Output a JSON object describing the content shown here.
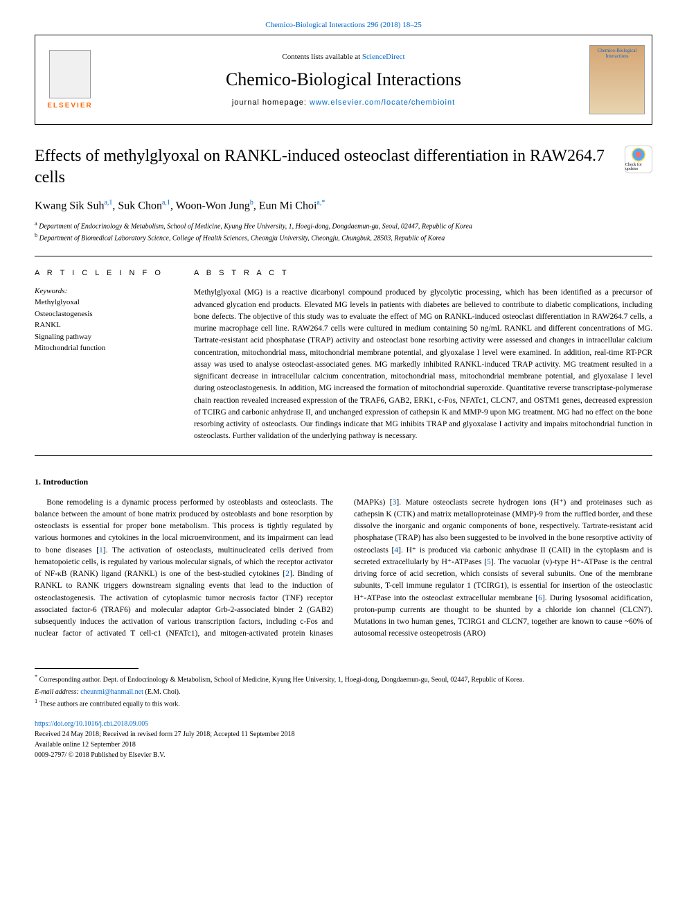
{
  "journal_ref": "Chemico-Biological Interactions 296 (2018) 18–25",
  "header": {
    "contents_prefix": "Contents lists available at ",
    "contents_link": "ScienceDirect",
    "journal_name": "Chemico-Biological Interactions",
    "homepage_prefix": "journal homepage: ",
    "homepage_link": "www.elsevier.com/locate/chembioint",
    "publisher": "ELSEVIER",
    "cover_text": "Chemico-Biological Interactions"
  },
  "updates_label": "Check for updates",
  "title": "Effects of methylglyoxal on RANKL-induced osteoclast differentiation in RAW264.7 cells",
  "authors_html": "Kwang Sik Suh<sup>a,1</sup>, Suk Chon<sup>a,1</sup>, Woon-Won Jung<sup>b</sup>, Eun Mi Choi<sup>a,*</sup>",
  "affiliations": {
    "a": "Department of Endocrinology & Metabolism, School of Medicine, Kyung Hee University, 1, Hoegi-dong, Dongdaemun-gu, Seoul, 02447, Republic of Korea",
    "b": "Department of Biomedical Laboratory Science, College of Health Sciences, Cheongju University, Cheongju, Chungbuk, 28503, Republic of Korea"
  },
  "article_info_header": "A R T I C L E  I N F O",
  "abstract_header": "A B S T R A C T",
  "keywords_label": "Keywords:",
  "keywords": [
    "Methylglyoxal",
    "Osteoclastogenesis",
    "RANKL",
    "Signaling pathway",
    "Mitochondrial function"
  ],
  "abstract": "Methylglyoxal (MG) is a reactive dicarbonyl compound produced by glycolytic processing, which has been identified as a precursor of advanced glycation end products. Elevated MG levels in patients with diabetes are believed to contribute to diabetic complications, including bone defects. The objective of this study was to evaluate the effect of MG on RANKL-induced osteoclast differentiation in RAW264.7 cells, a murine macrophage cell line. RAW264.7 cells were cultured in medium containing 50 ng/mL RANKL and different concentrations of MG. Tartrate-resistant acid phosphatase (TRAP) activity and osteoclast bone resorbing activity were assessed and changes in intracellular calcium concentration, mitochondrial mass, mitochondrial membrane potential, and glyoxalase I level were examined. In addition, real-time RT-PCR assay was used to analyse osteoclast-associated genes. MG markedly inhibited RANKL-induced TRAP activity. MG treatment resulted in a significant decrease in intracellular calcium concentration, mitochondrial mass, mitochondrial membrane potential, and glyoxalase I level during osteoclastogenesis. In addition, MG increased the formation of mitochondrial superoxide. Quantitative reverse transcriptase-polymerase chain reaction revealed increased expression of the TRAF6, GAB2, ERK1, c-Fos, NFATc1, CLCN7, and OSTM1 genes, decreased expression of TCIRG and carbonic anhydrase II, and unchanged expression of cathepsin K and MMP-9 upon MG treatment. MG had no effect on the bone resorbing activity of osteoclasts. Our findings indicate that MG inhibits TRAP and glyoxalase I activity and impairs mitochondrial function in osteoclasts. Further validation of the underlying pathway is necessary.",
  "intro_header": "1. Introduction",
  "intro_body": "Bone remodeling is a dynamic process performed by osteoblasts and osteoclasts. The balance between the amount of bone matrix produced by osteoblasts and bone resorption by osteoclasts is essential for proper bone metabolism. This process is tightly regulated by various hormones and cytokines in the local microenvironment, and its impairment can lead to bone diseases [1]. The activation of osteoclasts, multinucleated cells derived from hematopoietic cells, is regulated by various molecular signals, of which the receptor activator of NF-κB (RANK) ligand (RANKL) is one of the best-studied cytokines [2]. Binding of RANKL to RANK triggers downstream signaling events that lead to the induction of osteoclastogenesis. The activation of cytoplasmic tumor necrosis factor (TNF) receptor associated factor-6 (TRAF6) and molecular adaptor Grb-2-associated binder 2 (GAB2) subsequently induces the activation of various transcription factors, including c-Fos and nuclear factor of activated T cell-c1 (NFATc1), and mitogen-activated protein kinases (MAPKs) [3]. Mature osteoclasts secrete hydrogen ions (H⁺) and proteinases such as cathepsin K (CTK) and matrix metalloproteinase (MMP)-9 from the ruffled border, and these dissolve the inorganic and organic components of bone, respectively. Tartrate-resistant acid phosphatase (TRAP) has also been suggested to be involved in the bone resorptive activity of osteoclasts [4]. H⁺ is produced via carbonic anhydrase II (CAII) in the cytoplasm and is secreted extracellularly by H⁺-ATPases [5]. The vacuolar (v)-type H⁺-ATPase is the central driving force of acid secretion, which consists of several subunits. One of the membrane subunits, T-cell immune regulator 1 (TCIRG1), is essential for insertion of the osteoclastic H⁺-ATPase into the osteoclast extracellular membrane [6]. During lysosomal acidification, proton-pump currents are thought to be shunted by a chloride ion channel (CLCN7). Mutations in two human genes, TCIRG1 and CLCN7, together are known to cause ~60% of autosomal recessive osteopetrosis (ARO)",
  "footnotes": {
    "corresponding": "Corresponding author. Dept. of Endocrinology & Metabolism, School of Medicine, Kyung Hee University, 1, Hoegi-dong, Dongdaemun-gu, Seoul, 02447, Republic of Korea.",
    "email_label": "E-mail address: ",
    "email": "cheunmi@hanmail.net",
    "email_suffix": " (E.M. Choi).",
    "contrib": "These authors are contributed equally to this work."
  },
  "doi": "https://doi.org/10.1016/j.cbi.2018.09.005",
  "received": "Received 24 May 2018; Received in revised form 27 July 2018; Accepted 11 September 2018",
  "available": "Available online 12 September 2018",
  "copyright": "0009-2797/ © 2018 Published by Elsevier B.V.",
  "colors": {
    "link": "#0066cc",
    "elsevier_orange": "#ff6600"
  }
}
